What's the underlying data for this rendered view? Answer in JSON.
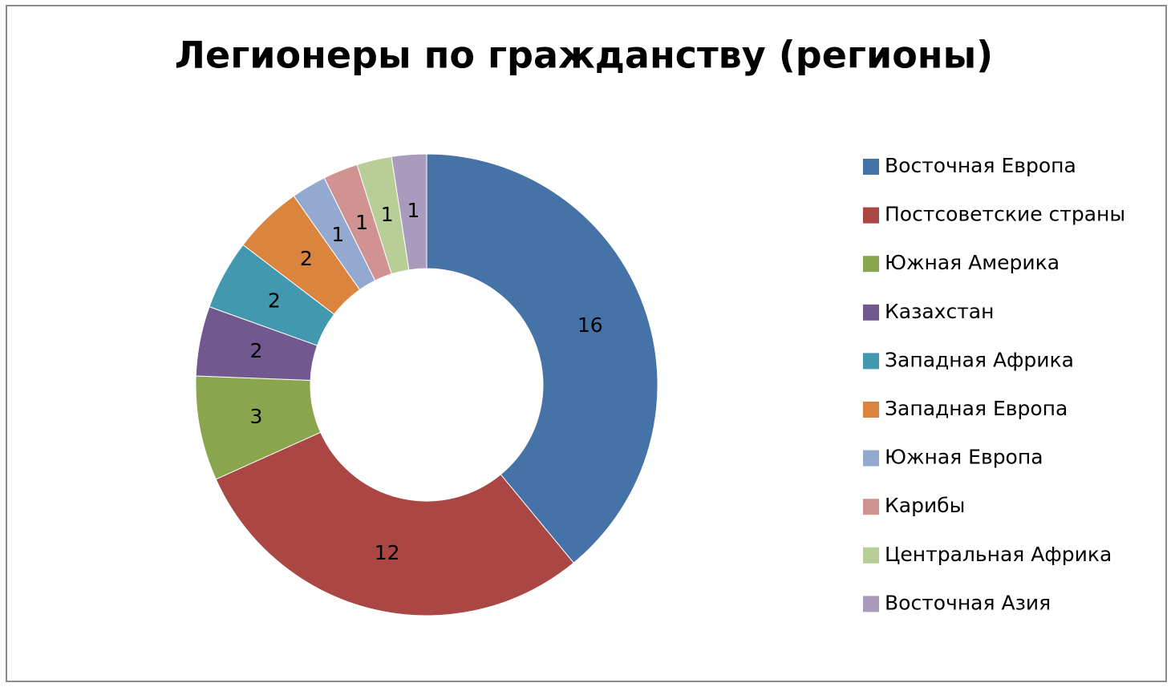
{
  "chart_data": {
    "type": "donut",
    "title": "Легионеры по гражданству (регионы)",
    "categories": [
      "Восточная Европа",
      "Постсоветские страны",
      "Южная Америка",
      "Казахстан",
      "Западная Африка",
      "Западная Европа",
      "Южная Европа",
      "Карибы",
      "Центральная Африка",
      "Восточная Азия"
    ],
    "values": [
      16,
      12,
      3,
      2,
      2,
      2,
      1,
      1,
      1,
      1
    ],
    "colors": [
      "#4572a7",
      "#aa4643",
      "#89a54e",
      "#71588f",
      "#4198af",
      "#db843d",
      "#93a9cf",
      "#d19392",
      "#b9cd96",
      "#a99bbd"
    ],
    "legend": "right"
  }
}
